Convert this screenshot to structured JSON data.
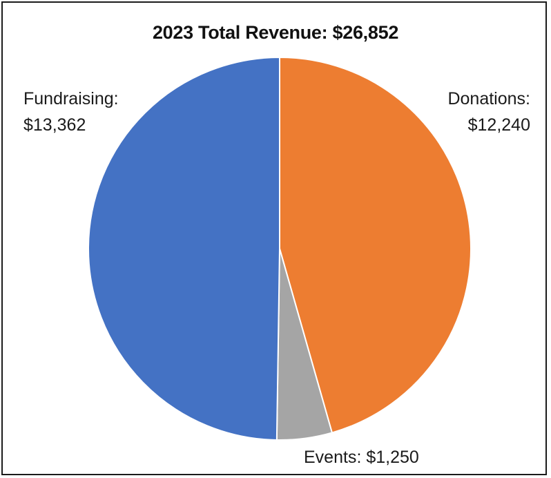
{
  "chart_data": {
    "type": "pie",
    "title": "2023 Total Revenue: $26,852",
    "categories": [
      "Donations",
      "Events",
      "Fundraising"
    ],
    "values": [
      12240,
      1250,
      13362
    ],
    "value_labels": [
      "$12,240",
      "$1,250",
      "$13,362"
    ],
    "colors": [
      "#ED7D31",
      "#A5A5A5",
      "#4472C4"
    ],
    "legend": "none"
  }
}
